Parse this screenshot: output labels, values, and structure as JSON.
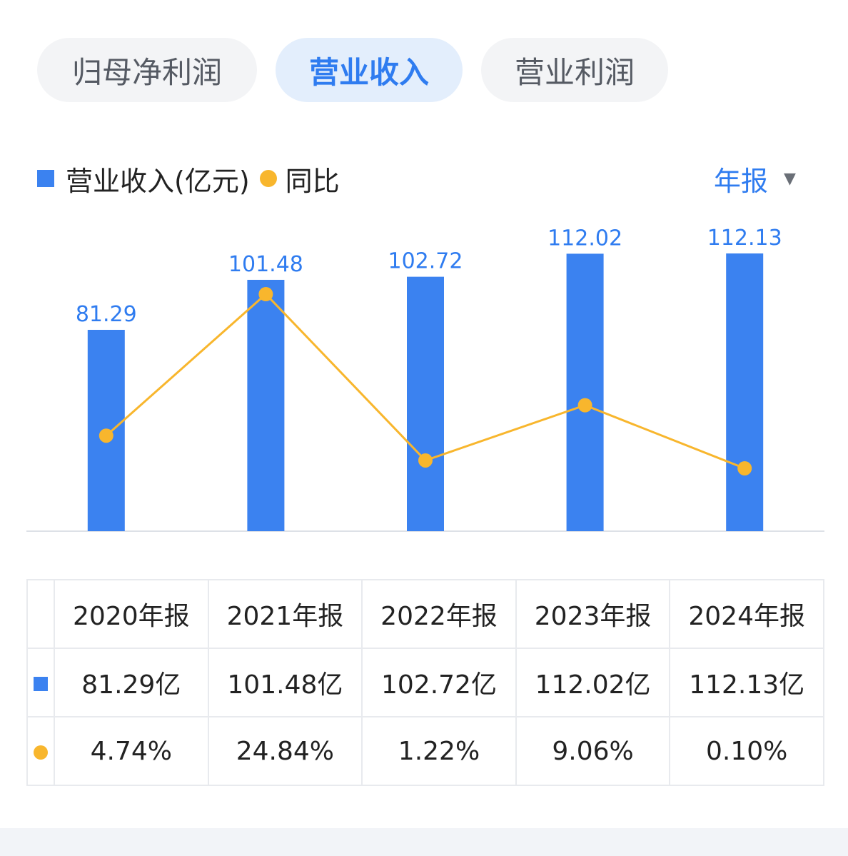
{
  "tabs": [
    {
      "label": "归母净利润",
      "active": false
    },
    {
      "label": "营业收入",
      "active": true
    },
    {
      "label": "营业利润",
      "active": false
    }
  ],
  "legend": {
    "bar_label": "营业收入(亿元)",
    "line_label": "同比"
  },
  "period_selector": {
    "label": "年报",
    "arrow": "▼"
  },
  "colors": {
    "bar": "#3b82f0",
    "line": "#f8b62d",
    "positive_pct": "#e5484d",
    "accent": "#2f7cf0"
  },
  "chart_data": {
    "type": "bar",
    "categories": [
      "2020年报",
      "2021年报",
      "2022年报",
      "2023年报",
      "2024年报"
    ],
    "series": [
      {
        "name": "营业收入(亿元)",
        "kind": "bar",
        "values": [
          81.29,
          101.48,
          102.72,
          112.02,
          112.13
        ]
      },
      {
        "name": "同比",
        "kind": "line",
        "unit": "%",
        "values": [
          4.74,
          24.84,
          1.22,
          9.06,
          0.1
        ]
      }
    ],
    "bar_labels": [
      "81.29",
      "101.48",
      "102.72",
      "112.02",
      "112.13"
    ]
  },
  "table": {
    "headers": [
      "2020年报",
      "2021年报",
      "2022年报",
      "2023年报",
      "2024年报"
    ],
    "revenue_row": [
      "81.29亿",
      "101.48亿",
      "102.72亿",
      "112.02亿",
      "112.13亿"
    ],
    "yoy_row": [
      "4.74%",
      "24.84%",
      "1.22%",
      "9.06%",
      "0.10%"
    ]
  }
}
